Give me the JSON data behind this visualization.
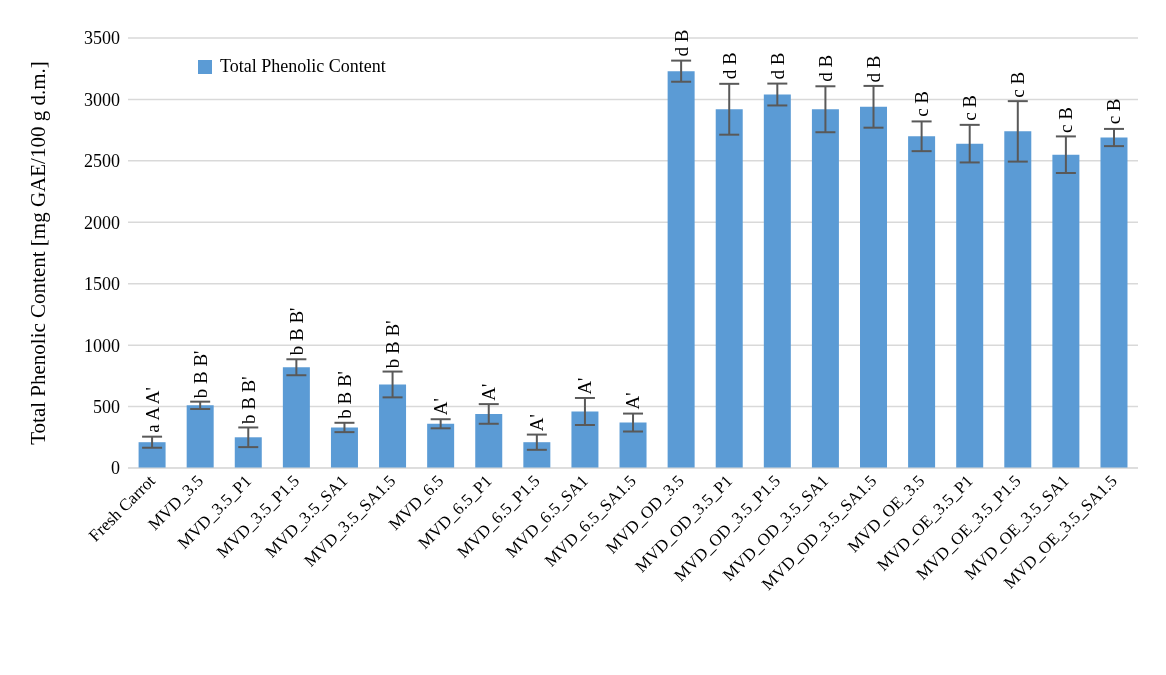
{
  "chart_data": {
    "type": "bar",
    "ylabel": "Total Phenolic Content [mg GAE/100 g d.m.]",
    "categories": [
      "Fresh Carrot",
      "MVD_3.5",
      "MVD_3.5_P1",
      "MVD_3.5_P1.5",
      "MVD_3.5_SA1",
      "MVD_3.5_SA1.5",
      "MVD_6.5",
      "MVD_6.5_P1",
      "MVD_6.5_P1.5",
      "MVD_6.5_SA1",
      "MVD_6.5_SA1.5",
      "MVD_OD_3.5",
      "MVD_OD_3.5_P1",
      "MVD_OD_3.5_P1.5",
      "MVD_OD_3.5_SA1",
      "MVD_OD_3.5_SA1.5",
      "MVD_OE_3.5",
      "MVD_OE_3.5_P1",
      "MVD_OE_3.5_P1.5",
      "MVD_OE_3.5_SA1",
      "MVD_OE_3.5_SA1.5"
    ],
    "series": [
      {
        "name": "Total Phenolic Content",
        "color": "#5b9bd5",
        "values": [
          210,
          510,
          250,
          820,
          330,
          680,
          360,
          440,
          210,
          460,
          370,
          3230,
          2920,
          3040,
          2920,
          2940,
          2700,
          2640,
          2740,
          2550,
          2690
        ],
        "errors": [
          45,
          30,
          80,
          65,
          38,
          105,
          37,
          80,
          62,
          110,
          73,
          86,
          207,
          89,
          187,
          170,
          121,
          153,
          246,
          149,
          70
        ]
      }
    ],
    "ylim": [
      0,
      3500
    ],
    "yticks": [
      0,
      500,
      1000,
      1500,
      2000,
      2500,
      3000,
      3500
    ],
    "grid": "y",
    "legend": "top left",
    "annotations": [
      {
        "text": "a A A'",
        "x": "Fresh Carrot",
        "y": 255
      },
      {
        "text": "b B B'",
        "x": "MVD_3.5",
        "y": 535
      },
      {
        "text": "b B B'",
        "x": "MVD_3.5_P1",
        "y": 325
      },
      {
        "text": "b B B'",
        "x": "MVD_3.5_P1.5",
        "y": 885
      },
      {
        "text": "b B B'",
        "x": "MVD_3.5_SA1",
        "y": 368
      },
      {
        "text": "b B B'",
        "x": "MVD_3.5_SA1.5",
        "y": 780
      },
      {
        "text": "A'",
        "x": "MVD_6.5",
        "y": 397
      },
      {
        "text": "A'",
        "x": "MVD_6.5_P1",
        "y": 515
      },
      {
        "text": "A'",
        "x": "MVD_6.5_P1.5",
        "y": 267
      },
      {
        "text": "A'",
        "x": "MVD_6.5_SA1",
        "y": 565
      },
      {
        "text": "A'",
        "x": "MVD_6.5_SA1.5",
        "y": 443
      },
      {
        "text": "d B",
        "x": "MVD_OD_3.5",
        "y": 3316
      },
      {
        "text": "d B",
        "x": "MVD_OD_3.5_P1",
        "y": 3132
      },
      {
        "text": "d B",
        "x": "MVD_OD_3.5_P1.5",
        "y": 3129
      },
      {
        "text": "d B",
        "x": "MVD_OD_3.5_SA1",
        "y": 3112
      },
      {
        "text": "d B",
        "x": "MVD_OD_3.5_SA1.5",
        "y": 3105
      },
      {
        "text": "c B",
        "x": "MVD_OE_3.5",
        "y": 2826
      },
      {
        "text": "c B",
        "x": "MVD_OE_3.5_P1",
        "y": 2793
      },
      {
        "text": "c B",
        "x": "MVD_OE_3.5_P1.5",
        "y": 2981
      },
      {
        "text": "c B",
        "x": "MVD_OE_3.5_SA1",
        "y": 2694
      },
      {
        "text": "c B",
        "x": "MVD_OE_3.5_SA1.5",
        "y": 2765
      }
    ]
  }
}
